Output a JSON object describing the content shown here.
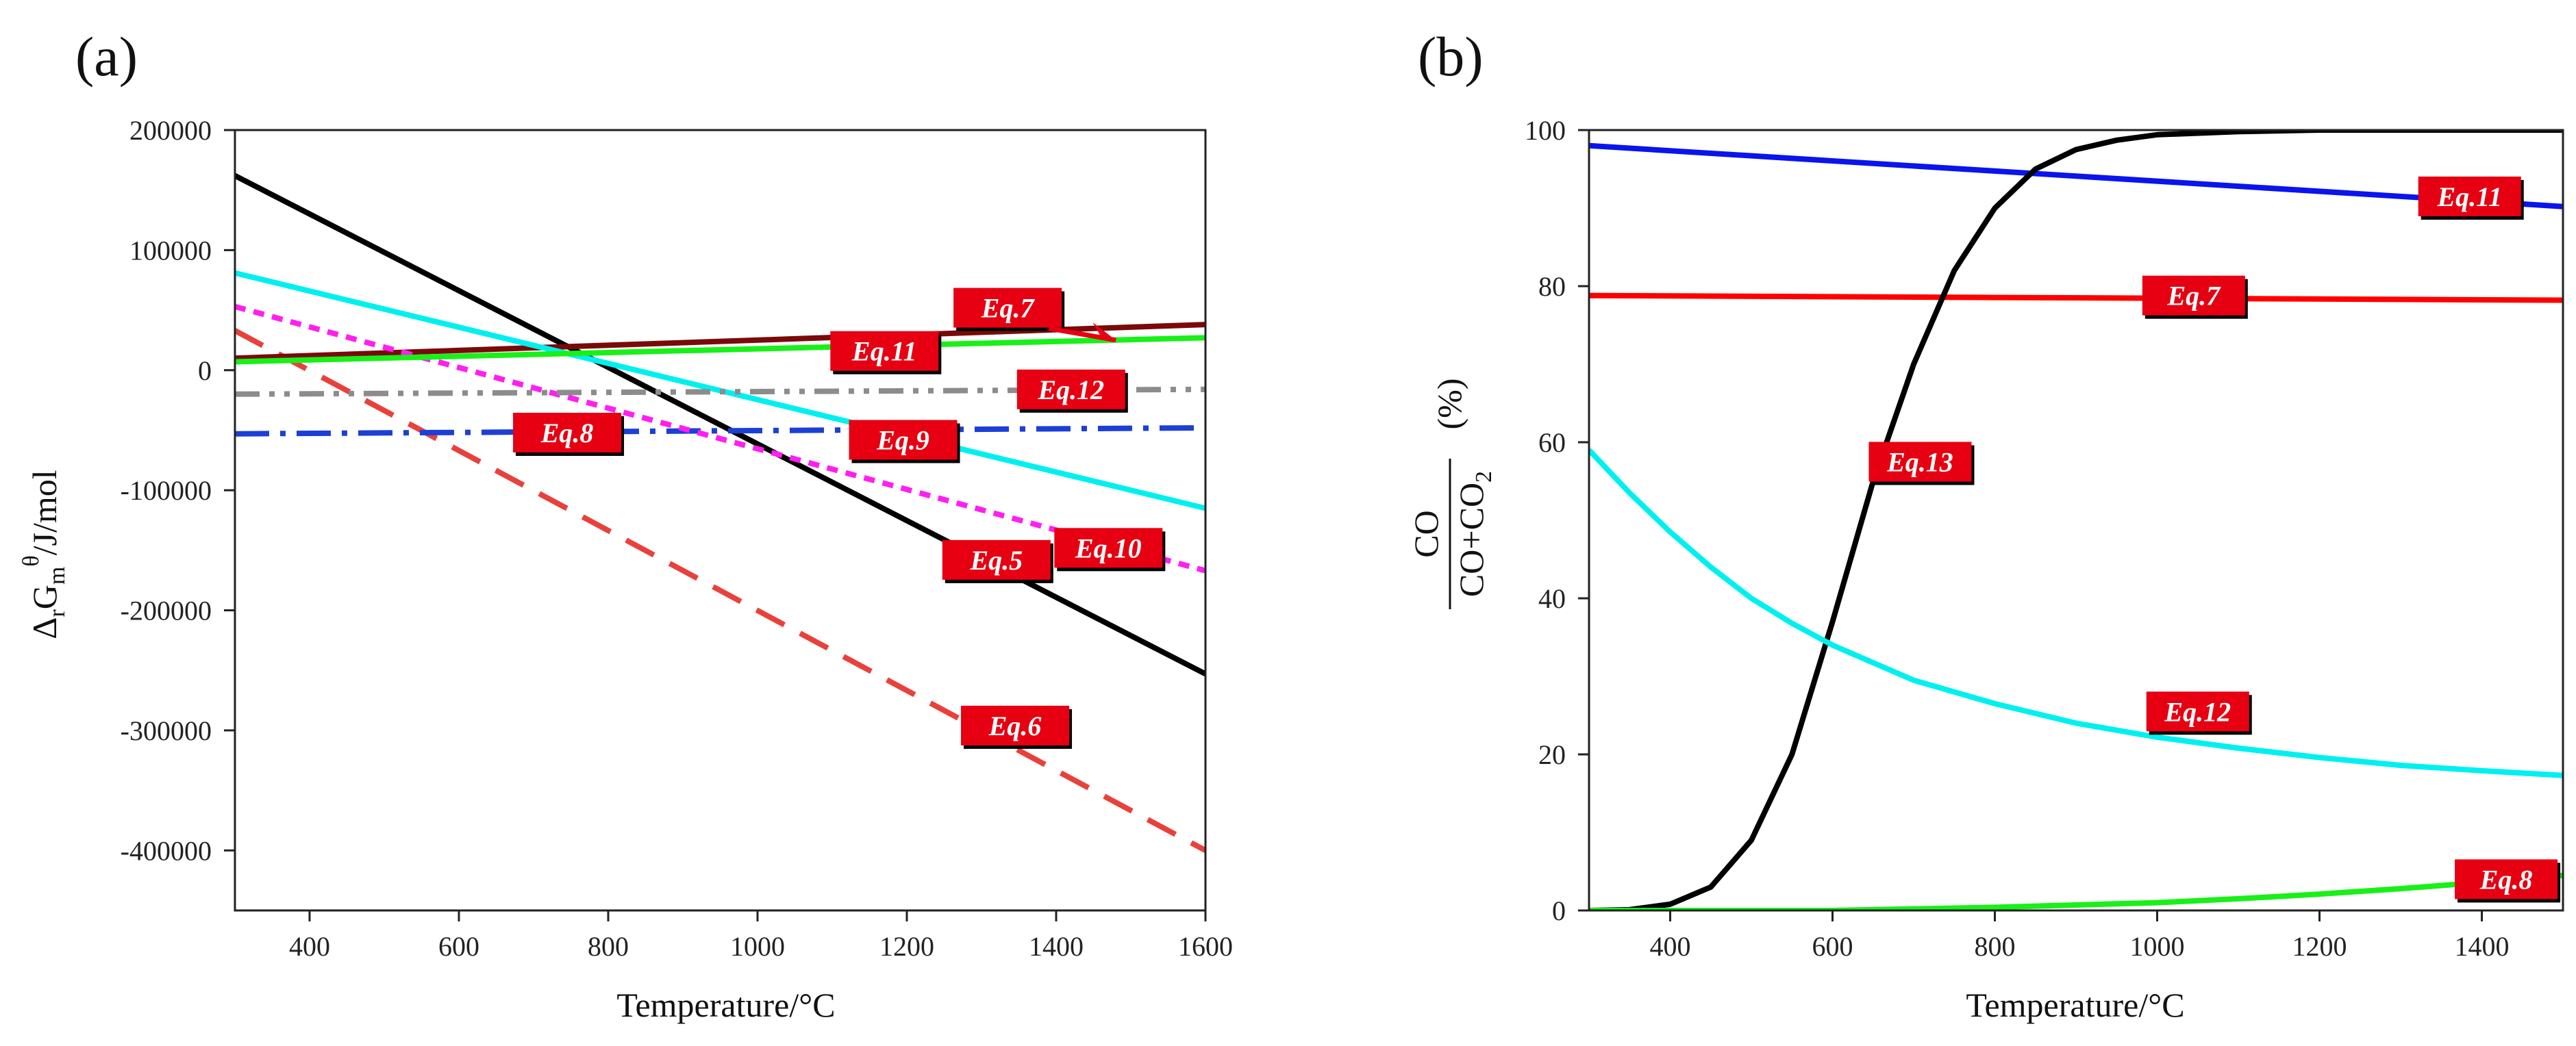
{
  "chart_data": [
    {
      "panel": "(a)",
      "type": "line",
      "xlabel": "Temperature/°C",
      "ylabel": {
        "prefix": "Δ",
        "sub1": "r",
        "main": "G",
        "sub2": "m",
        "sup": "θ",
        "suffix": "/J/mol"
      },
      "xlim": [
        300,
        1600
      ],
      "ylim": [
        -450000,
        200000
      ],
      "xticks": [
        "400",
        "600",
        "800",
        "1000",
        "1200",
        "1400",
        "1600"
      ],
      "yticks": [
        "200000",
        "100000",
        "0",
        "-100000",
        "-200000",
        "-300000",
        "-400000"
      ],
      "xtick_values": [
        400,
        600,
        800,
        1000,
        1200,
        1400,
        1600
      ],
      "ytick_values": [
        200000,
        100000,
        0,
        -100000,
        -200000,
        -300000,
        -400000
      ],
      "grid": false,
      "series": [
        {
          "label": "Eq.5",
          "color": "#000000",
          "style": "solid",
          "x": [
            300,
            1600
          ],
          "y": [
            162000,
            -253000
          ]
        },
        {
          "label": "Eq.6",
          "color": "#e8413c",
          "style": "dashed",
          "x": [
            300,
            1600
          ],
          "y": [
            33000,
            -400000
          ]
        },
        {
          "label": "Eq.7",
          "color": "#7a0a0a",
          "style": "solid",
          "x": [
            300,
            1600
          ],
          "y": [
            10000,
            38000
          ]
        },
        {
          "label": "Eq.8",
          "color": "#1c3fd6",
          "style": "dashdot",
          "x": [
            300,
            1600
          ],
          "y": [
            -53000,
            -48000
          ]
        },
        {
          "label": "Eq.9",
          "color": "#00f0f0",
          "style": "solid",
          "x": [
            300,
            1600
          ],
          "y": [
            81000,
            -115000
          ]
        },
        {
          "label": "Eq.10",
          "color": "#ff1ff0",
          "style": "dotted",
          "x": [
            300,
            1600
          ],
          "y": [
            53000,
            -167000
          ]
        },
        {
          "label": "Eq.11",
          "color": "#19f019",
          "style": "solid",
          "x": [
            300,
            1600
          ],
          "y": [
            7000,
            27000
          ]
        },
        {
          "label": "Eq.12",
          "color": "#8c8c8c",
          "style": "dashdotdot",
          "x": [
            300,
            1600
          ],
          "y": [
            -20000,
            -16000
          ]
        }
      ],
      "annotations": [
        {
          "text": "Eq.7",
          "x": 1335,
          "y": 52000
        },
        {
          "text": "Eq.11",
          "x": 1170,
          "y": 16000
        },
        {
          "text": "Eq.12",
          "x": 1420,
          "y": -16000
        },
        {
          "text": "Eq.8",
          "x": 745,
          "y": -52000
        },
        {
          "text": "Eq.9",
          "x": 1195,
          "y": -58000
        },
        {
          "text": "Eq.10",
          "x": 1470,
          "y": -148000
        },
        {
          "text": "Eq.5",
          "x": 1320,
          "y": -158000
        },
        {
          "text": "Eq.6",
          "x": 1345,
          "y": -296000
        }
      ]
    },
    {
      "panel": "(b)",
      "type": "line",
      "xlabel": "Temperature/°C",
      "ylabel": {
        "numerator": "CO",
        "denominator": "CO+CO",
        "den_sub": "2",
        "unit": "(%)"
      },
      "xlim": [
        300,
        1500
      ],
      "ylim": [
        0,
        100
      ],
      "xticks": [
        "400",
        "600",
        "800",
        "1000",
        "1200",
        "1400"
      ],
      "yticks": [
        "0",
        "20",
        "40",
        "60",
        "80",
        "100"
      ],
      "xtick_values": [
        400,
        600,
        800,
        1000,
        1200,
        1400
      ],
      "ytick_values": [
        0,
        20,
        40,
        60,
        80,
        100
      ],
      "grid": false,
      "series": [
        {
          "label": "Eq.11",
          "color": "#0a14ec",
          "style": "solid",
          "x": [
            300,
            1500
          ],
          "y": [
            98,
            90.2
          ]
        },
        {
          "label": "Eq.7",
          "color": "#ff0000",
          "style": "solid",
          "x": [
            300,
            1500
          ],
          "y": [
            78.8,
            78.2
          ]
        },
        {
          "label": "Eq.13",
          "color": "#000000",
          "style": "solid",
          "x": [
            300,
            350,
            400,
            450,
            500,
            550,
            600,
            650,
            700,
            750,
            800,
            850,
            900,
            950,
            1000,
            1100,
            1200,
            1300,
            1400,
            1500
          ],
          "y": [
            0,
            0.1,
            0.8,
            3,
            9,
            20,
            37,
            55,
            70,
            82,
            90,
            95,
            97.5,
            98.7,
            99.4,
            99.8,
            100,
            100,
            100,
            100
          ]
        },
        {
          "label": "Eq.12",
          "color": "#00f0f0",
          "style": "solid",
          "x": [
            300,
            350,
            400,
            450,
            500,
            550,
            600,
            700,
            800,
            900,
            1000,
            1100,
            1200,
            1300,
            1400,
            1500
          ],
          "y": [
            59,
            53.5,
            48.5,
            44,
            40,
            36.8,
            34,
            29.5,
            26.5,
            24,
            22.2,
            20.8,
            19.6,
            18.6,
            17.9,
            17.3
          ]
        },
        {
          "label": "Eq.8",
          "color": "#19f019",
          "style": "solid",
          "x": [
            300,
            600,
            800,
            1000,
            1100,
            1200,
            1300,
            1400,
            1500
          ],
          "y": [
            0,
            0,
            0.4,
            1,
            1.5,
            2.1,
            2.8,
            3.6,
            4.5
          ]
        }
      ],
      "annotations": [
        {
          "text": "Eq.11",
          "x": 1385,
          "y": 91.5
        },
        {
          "text": "Eq.7",
          "x": 1045,
          "y": 78.8
        },
        {
          "text": "Eq.13",
          "x": 708,
          "y": 57.5
        },
        {
          "text": "Eq.12",
          "x": 1050,
          "y": 25.5
        },
        {
          "text": "Eq.8",
          "x": 1430,
          "y": 4
        }
      ]
    }
  ]
}
